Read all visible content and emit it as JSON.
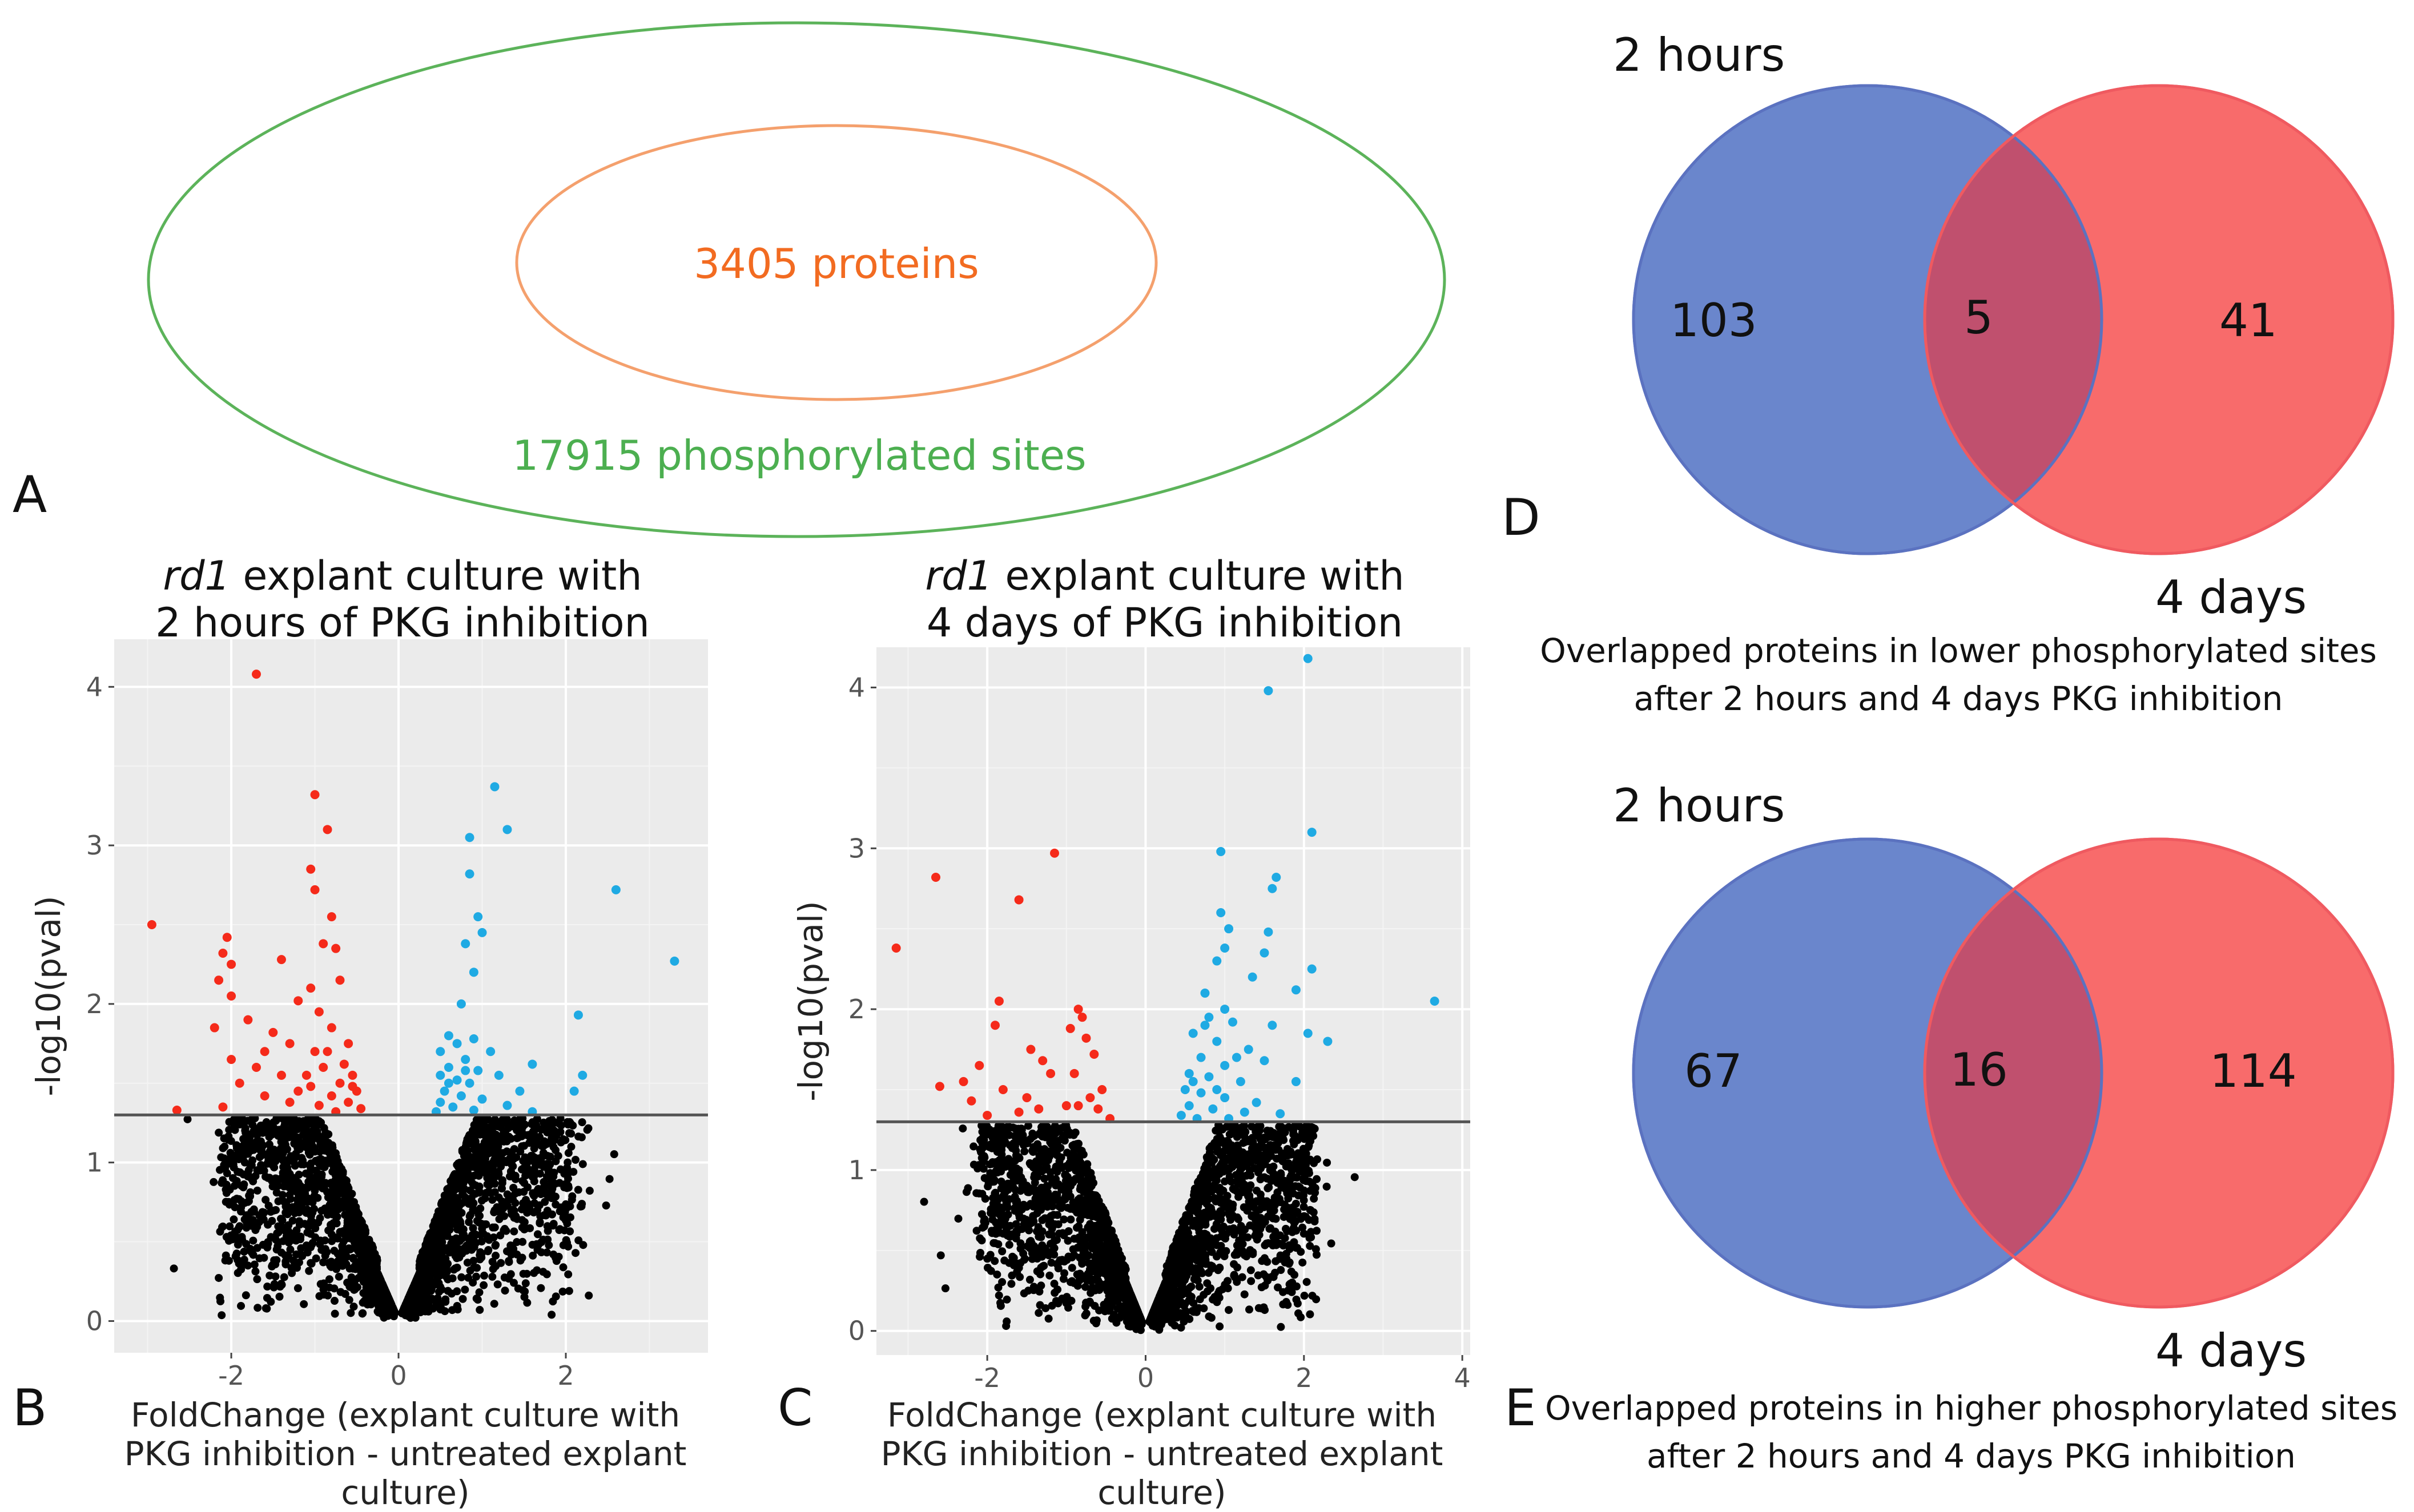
{
  "panels": {
    "A": {
      "letter": "A",
      "inner_label": "3405 proteins",
      "outer_label": "17915 phosphorylated sites",
      "inner_color": "#f4a06d",
      "inner_text_color": "#f26b21",
      "outer_color": "#5cb35a",
      "outer_text_color": "#4caf50"
    },
    "B": {
      "letter": "B",
      "title_italic": "rd1",
      "title_rest": " explant culture with",
      "title_line2": "2 hours of PKG inhibition",
      "xlabel_line1": "FoldChange (explant culture with",
      "xlabel_line2": "PKG inhibition - untreated explant culture)"
    },
    "C": {
      "letter": "C",
      "title_italic": "rd1",
      "title_rest": " explant culture with",
      "title_line2": "4 days of PKG inhibition",
      "xlabel_line1": "FoldChange (explant culture with",
      "xlabel_line2": "PKG inhibition - untreated explant culture)"
    },
    "D": {
      "letter": "D",
      "set_a": "2 hours",
      "set_b": "4 days",
      "only_a": "103",
      "both": "5",
      "only_b": "41",
      "caption_line1": "Overlapped proteins in lower phosphorylated sites",
      "caption_line2": "after 2 hours and 4 days PKG inhibition"
    },
    "E": {
      "letter": "E",
      "set_a": "2 hours",
      "set_b": "4 days",
      "only_a": "67",
      "both": "16",
      "only_b": "114",
      "caption_line1": "Overlapped proteins in higher phosphorylated sites",
      "caption_line2": "after 2 hours and 4 days PKG inhibition"
    }
  },
  "colors": {
    "venn_blue": "#6a86cc",
    "venn_red": "#f86b6b",
    "venn_overlap": "#c0506e",
    "down": "#f52a1a",
    "up": "#1faae3",
    "ns": "#000000",
    "panel_bg": "#ebebeb"
  },
  "chart_data": [
    {
      "id": "B",
      "type": "scatter",
      "title": "rd1 explant culture with 2 hours of PKG inhibition",
      "xlabel": "FoldChange (explant culture with PKG inhibition - untreated explant culture)",
      "ylabel": "-log10(pval)",
      "xlim": [
        -3.4,
        3.7
      ],
      "ylim": [
        -0.2,
        4.3
      ],
      "xticks": [
        -2,
        0,
        2
      ],
      "yticks": [
        0,
        1,
        2,
        3,
        4
      ],
      "threshold_y": 1.3,
      "grid": true,
      "series": [
        {
          "name": "lower",
          "color": "#f52a1a",
          "points": [
            [
              -1.7,
              4.08
            ],
            [
              -1.0,
              3.32
            ],
            [
              -0.85,
              3.1
            ],
            [
              -1.05,
              2.85
            ],
            [
              -1.0,
              2.72
            ],
            [
              -2.95,
              2.5
            ],
            [
              -2.05,
              2.42
            ],
            [
              -0.8,
              2.55
            ],
            [
              -2.1,
              2.32
            ],
            [
              -0.9,
              2.38
            ],
            [
              -1.4,
              2.28
            ],
            [
              -2.0,
              2.25
            ],
            [
              -0.75,
              2.35
            ],
            [
              -2.15,
              2.15
            ],
            [
              -1.05,
              2.1
            ],
            [
              -2.0,
              2.05
            ],
            [
              -1.2,
              2.02
            ],
            [
              -0.7,
              2.15
            ],
            [
              -0.95,
              1.95
            ],
            [
              -1.8,
              1.9
            ],
            [
              -2.2,
              1.85
            ],
            [
              -1.5,
              1.82
            ],
            [
              -0.8,
              1.85
            ],
            [
              -0.6,
              1.75
            ],
            [
              -1.3,
              1.75
            ],
            [
              -1.0,
              1.7
            ],
            [
              -2.0,
              1.65
            ],
            [
              -1.6,
              1.7
            ],
            [
              -0.9,
              1.6
            ],
            [
              -0.55,
              1.55
            ],
            [
              -1.7,
              1.6
            ],
            [
              -1.1,
              1.55
            ],
            [
              -0.7,
              1.5
            ],
            [
              -1.4,
              1.55
            ],
            [
              -1.9,
              1.5
            ],
            [
              -0.5,
              1.45
            ],
            [
              -0.8,
              1.42
            ],
            [
              -1.2,
              1.45
            ],
            [
              -1.6,
              1.42
            ],
            [
              -0.6,
              1.38
            ],
            [
              -0.95,
              1.36
            ],
            [
              -2.1,
              1.35
            ],
            [
              -2.65,
              1.33
            ],
            [
              -0.45,
              1.34
            ],
            [
              -1.3,
              1.38
            ],
            [
              -0.75,
              1.32
            ],
            [
              -0.55,
              1.48
            ],
            [
              -1.05,
              1.48
            ],
            [
              -0.65,
              1.62
            ],
            [
              -0.85,
              1.7
            ]
          ]
        },
        {
          "name": "higher",
          "color": "#1faae3",
          "points": [
            [
              1.15,
              3.37
            ],
            [
              1.3,
              3.1
            ],
            [
              0.85,
              3.05
            ],
            [
              0.85,
              2.82
            ],
            [
              2.6,
              2.72
            ],
            [
              0.95,
              2.55
            ],
            [
              1.0,
              2.45
            ],
            [
              0.8,
              2.38
            ],
            [
              3.3,
              2.27
            ],
            [
              0.9,
              2.2
            ],
            [
              0.75,
              2.0
            ],
            [
              2.15,
              1.93
            ],
            [
              0.6,
              1.8
            ],
            [
              0.7,
              1.75
            ],
            [
              0.9,
              1.78
            ],
            [
              0.5,
              1.7
            ],
            [
              1.1,
              1.7
            ],
            [
              0.8,
              1.65
            ],
            [
              1.6,
              1.62
            ],
            [
              0.6,
              1.6
            ],
            [
              0.95,
              1.58
            ],
            [
              0.5,
              1.55
            ],
            [
              0.7,
              1.52
            ],
            [
              1.2,
              1.55
            ],
            [
              0.85,
              1.5
            ],
            [
              2.2,
              1.55
            ],
            [
              0.55,
              1.45
            ],
            [
              0.75,
              1.42
            ],
            [
              1.0,
              1.4
            ],
            [
              1.45,
              1.45
            ],
            [
              0.5,
              1.38
            ],
            [
              0.65,
              1.35
            ],
            [
              0.9,
              1.33
            ],
            [
              1.3,
              1.36
            ],
            [
              2.1,
              1.45
            ],
            [
              0.45,
              1.32
            ],
            [
              1.6,
              1.32
            ],
            [
              0.6,
              1.5
            ],
            [
              0.8,
              1.58
            ]
          ]
        }
      ]
    },
    {
      "id": "C",
      "type": "scatter",
      "title": "rd1 explant culture with 4 days of PKG inhibition",
      "xlabel": "FoldChange (explant culture with PKG inhibition - untreated explant culture)",
      "ylabel": "-log10(pval)",
      "xlim": [
        -3.4,
        4.1
      ],
      "ylim": [
        -0.15,
        4.25
      ],
      "xticks": [
        -2,
        0,
        2,
        4
      ],
      "yticks": [
        0,
        1,
        2,
        3,
        4
      ],
      "threshold_y": 1.3,
      "grid": true,
      "series": [
        {
          "name": "lower",
          "color": "#f52a1a",
          "points": [
            [
              -1.15,
              2.97
            ],
            [
              -2.65,
              2.82
            ],
            [
              -1.6,
              2.68
            ],
            [
              -3.15,
              2.38
            ],
            [
              -1.85,
              2.05
            ],
            [
              -0.85,
              2.0
            ],
            [
              -0.8,
              1.95
            ],
            [
              -1.9,
              1.9
            ],
            [
              -0.95,
              1.88
            ],
            [
              -0.75,
              1.82
            ],
            [
              -1.45,
              1.75
            ],
            [
              -0.65,
              1.72
            ],
            [
              -1.3,
              1.68
            ],
            [
              -2.1,
              1.65
            ],
            [
              -1.2,
              1.6
            ],
            [
              -0.9,
              1.6
            ],
            [
              -2.3,
              1.55
            ],
            [
              -1.8,
              1.5
            ],
            [
              -0.55,
              1.5
            ],
            [
              -2.6,
              1.52
            ],
            [
              -1.5,
              1.45
            ],
            [
              -0.7,
              1.45
            ],
            [
              -2.2,
              1.43
            ],
            [
              -1.0,
              1.4
            ],
            [
              -0.85,
              1.4
            ],
            [
              -1.35,
              1.38
            ],
            [
              -1.6,
              1.36
            ],
            [
              -0.6,
              1.38
            ],
            [
              -2.0,
              1.34
            ],
            [
              -0.45,
              1.32
            ]
          ]
        },
        {
          "name": "higher",
          "color": "#1faae3",
          "points": [
            [
              2.05,
              4.18
            ],
            [
              1.55,
              3.98
            ],
            [
              0.95,
              2.98
            ],
            [
              2.1,
              3.1
            ],
            [
              1.65,
              2.82
            ],
            [
              1.6,
              2.75
            ],
            [
              0.95,
              2.6
            ],
            [
              1.05,
              2.5
            ],
            [
              1.55,
              2.48
            ],
            [
              1.0,
              2.38
            ],
            [
              0.9,
              2.3
            ],
            [
              1.5,
              2.35
            ],
            [
              2.1,
              2.25
            ],
            [
              1.35,
              2.2
            ],
            [
              0.75,
              2.1
            ],
            [
              1.0,
              2.0
            ],
            [
              3.65,
              2.05
            ],
            [
              1.9,
              2.12
            ],
            [
              0.8,
              1.95
            ],
            [
              1.1,
              1.92
            ],
            [
              1.6,
              1.9
            ],
            [
              2.05,
              1.85
            ],
            [
              2.3,
              1.8
            ],
            [
              0.6,
              1.85
            ],
            [
              0.9,
              1.8
            ],
            [
              1.3,
              1.75
            ],
            [
              0.7,
              1.7
            ],
            [
              1.0,
              1.65
            ],
            [
              1.5,
              1.68
            ],
            [
              0.55,
              1.6
            ],
            [
              0.8,
              1.58
            ],
            [
              1.2,
              1.55
            ],
            [
              1.9,
              1.55
            ],
            [
              0.5,
              1.5
            ],
            [
              0.7,
              1.48
            ],
            [
              1.0,
              1.45
            ],
            [
              1.4,
              1.42
            ],
            [
              0.55,
              1.4
            ],
            [
              0.85,
              1.38
            ],
            [
              1.25,
              1.36
            ],
            [
              0.45,
              1.34
            ],
            [
              0.65,
              1.32
            ],
            [
              1.05,
              1.32
            ],
            [
              1.7,
              1.35
            ],
            [
              0.6,
              1.55
            ],
            [
              0.9,
              1.5
            ],
            [
              1.15,
              1.7
            ],
            [
              0.75,
              1.9
            ]
          ]
        }
      ]
    },
    {
      "id": "D",
      "type": "venn",
      "title": "Overlapped proteins in lower phosphorylated sites after 2 hours and 4 days PKG inhibition",
      "sets": [
        "2 hours",
        "4 days"
      ],
      "values": {
        "only_2h": 103,
        "both": 5,
        "only_4d": 41
      }
    },
    {
      "id": "E",
      "type": "venn",
      "title": "Overlapped proteins in higher phosphorylated sites after 2 hours and 4 days PKG inhibition",
      "sets": [
        "2 hours",
        "4 days"
      ],
      "values": {
        "only_2h": 67,
        "both": 16,
        "only_4d": 114
      }
    }
  ]
}
